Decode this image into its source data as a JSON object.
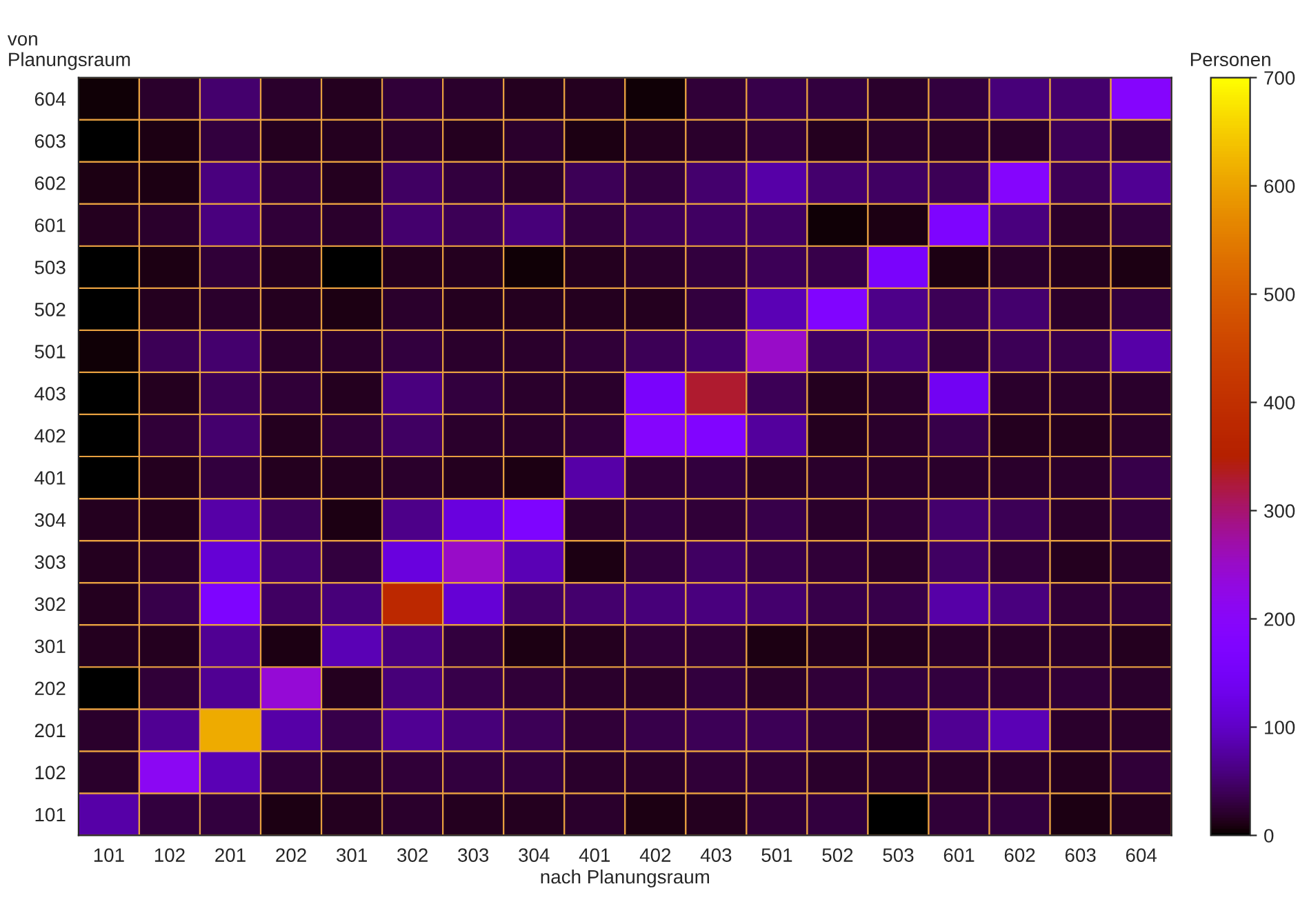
{
  "chart_data": {
    "type": "heatmap",
    "xlabel": "nach Planungsraum",
    "ylabel": "von\nPlanungsraum",
    "clabel": "Personen",
    "categories": [
      "101",
      "102",
      "201",
      "202",
      "301",
      "302",
      "303",
      "304",
      "401",
      "402",
      "403",
      "501",
      "502",
      "503",
      "601",
      "602",
      "603",
      "604"
    ],
    "y_categories": [
      "604",
      "603",
      "602",
      "601",
      "503",
      "502",
      "501",
      "403",
      "402",
      "401",
      "304",
      "303",
      "302",
      "301",
      "202",
      "201",
      "102",
      "101"
    ],
    "cells": [
      [
        5,
        20,
        50,
        20,
        15,
        25,
        20,
        15,
        15,
        5,
        25,
        35,
        30,
        20,
        30,
        55,
        50,
        190
      ],
      [
        0,
        10,
        30,
        15,
        15,
        20,
        15,
        20,
        10,
        15,
        20,
        25,
        15,
        20,
        20,
        20,
        40,
        30
      ],
      [
        10,
        10,
        60,
        25,
        15,
        45,
        30,
        20,
        40,
        30,
        50,
        80,
        50,
        45,
        40,
        190,
        40,
        70
      ],
      [
        15,
        20,
        60,
        25,
        20,
        50,
        40,
        55,
        30,
        40,
        45,
        45,
        5,
        10,
        170,
        60,
        20,
        30
      ],
      [
        0,
        10,
        25,
        15,
        0,
        15,
        15,
        5,
        15,
        20,
        30,
        40,
        35,
        160,
        10,
        20,
        15,
        10
      ],
      [
        0,
        15,
        20,
        15,
        10,
        20,
        15,
        15,
        15,
        15,
        30,
        90,
        180,
        65,
        40,
        50,
        20,
        30
      ],
      [
        5,
        40,
        50,
        20,
        20,
        30,
        20,
        20,
        25,
        40,
        50,
        250,
        45,
        55,
        30,
        40,
        35,
        80
      ],
      [
        0,
        15,
        40,
        25,
        15,
        60,
        30,
        20,
        20,
        160,
        330,
        40,
        15,
        20,
        140,
        20,
        20,
        20
      ],
      [
        0,
        25,
        50,
        15,
        25,
        45,
        20,
        20,
        25,
        190,
        180,
        75,
        15,
        20,
        35,
        15,
        15,
        20
      ],
      [
        0,
        15,
        30,
        15,
        15,
        20,
        15,
        10,
        80,
        25,
        30,
        20,
        20,
        20,
        20,
        20,
        20,
        35
      ],
      [
        15,
        15,
        80,
        40,
        10,
        65,
        120,
        170,
        20,
        30,
        25,
        35,
        20,
        25,
        50,
        40,
        20,
        30
      ],
      [
        15,
        20,
        110,
        50,
        30,
        120,
        250,
        90,
        10,
        30,
        45,
        35,
        25,
        20,
        45,
        25,
        15,
        20
      ],
      [
        15,
        35,
        170,
        45,
        55,
        380,
        110,
        45,
        50,
        55,
        60,
        50,
        35,
        35,
        80,
        60,
        25,
        25
      ],
      [
        15,
        15,
        70,
        10,
        90,
        60,
        30,
        10,
        15,
        25,
        25,
        10,
        15,
        15,
        20,
        20,
        20,
        15
      ],
      [
        0,
        25,
        70,
        240,
        15,
        55,
        35,
        25,
        20,
        20,
        30,
        20,
        25,
        30,
        30,
        25,
        25,
        20
      ],
      [
        20,
        70,
        610,
        80,
        35,
        70,
        55,
        40,
        25,
        35,
        40,
        40,
        30,
        20,
        70,
        90,
        20,
        20
      ],
      [
        20,
        210,
        90,
        25,
        20,
        25,
        30,
        30,
        20,
        20,
        25,
        25,
        20,
        20,
        20,
        20,
        15,
        25
      ],
      [
        80,
        30,
        30,
        10,
        15,
        20,
        15,
        15,
        20,
        10,
        15,
        25,
        30,
        0,
        25,
        30,
        10,
        15
      ]
    ],
    "clim": [
      0,
      700
    ],
    "cticks": [
      0,
      100,
      200,
      300,
      400,
      500,
      600,
      700
    ]
  }
}
